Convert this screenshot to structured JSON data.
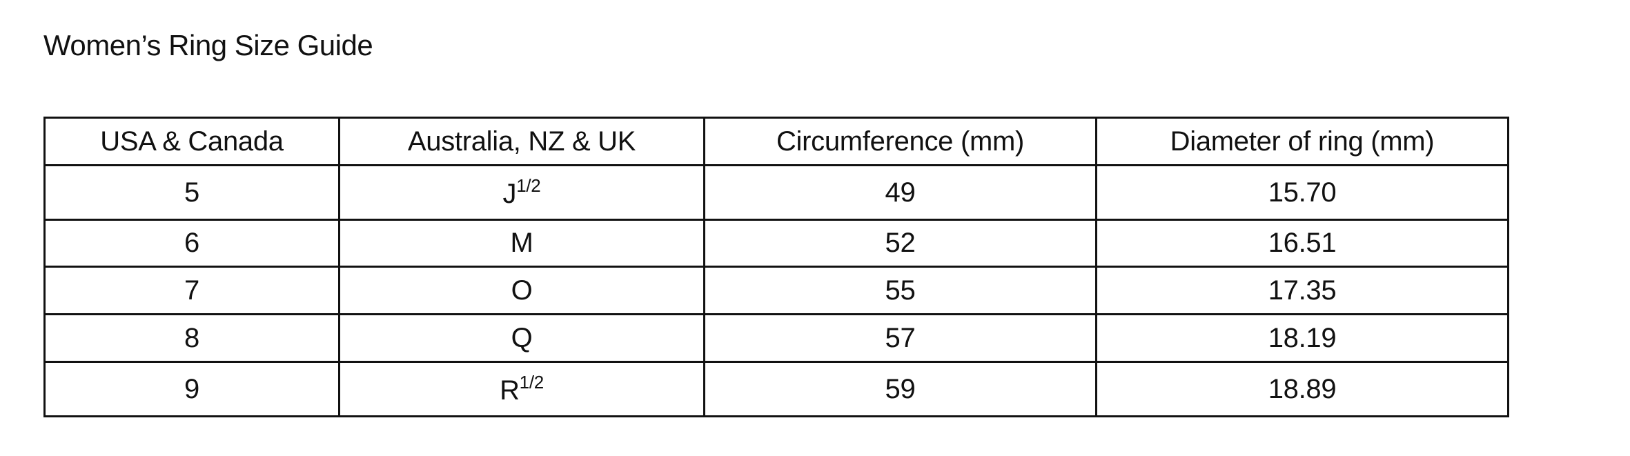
{
  "title": "Women’s Ring Size Guide",
  "table": {
    "headers": [
      "USA & Canada",
      "Australia, NZ & UK",
      "Circumference (mm)",
      "Diameter of ring (mm)"
    ],
    "rows": [
      {
        "usa": "5",
        "uk": "J",
        "uk_sup": "1/2",
        "circ": "49",
        "diam": "15.70"
      },
      {
        "usa": "6",
        "uk": "M",
        "uk_sup": "",
        "circ": "52",
        "diam": "16.51"
      },
      {
        "usa": "7",
        "uk": "O",
        "uk_sup": "",
        "circ": "55",
        "diam": "17.35"
      },
      {
        "usa": "8",
        "uk": "Q",
        "uk_sup": "",
        "circ": "57",
        "diam": "18.19"
      },
      {
        "usa": "9",
        "uk": "R",
        "uk_sup": "1/2",
        "circ": "59",
        "diam": "18.89"
      }
    ]
  }
}
